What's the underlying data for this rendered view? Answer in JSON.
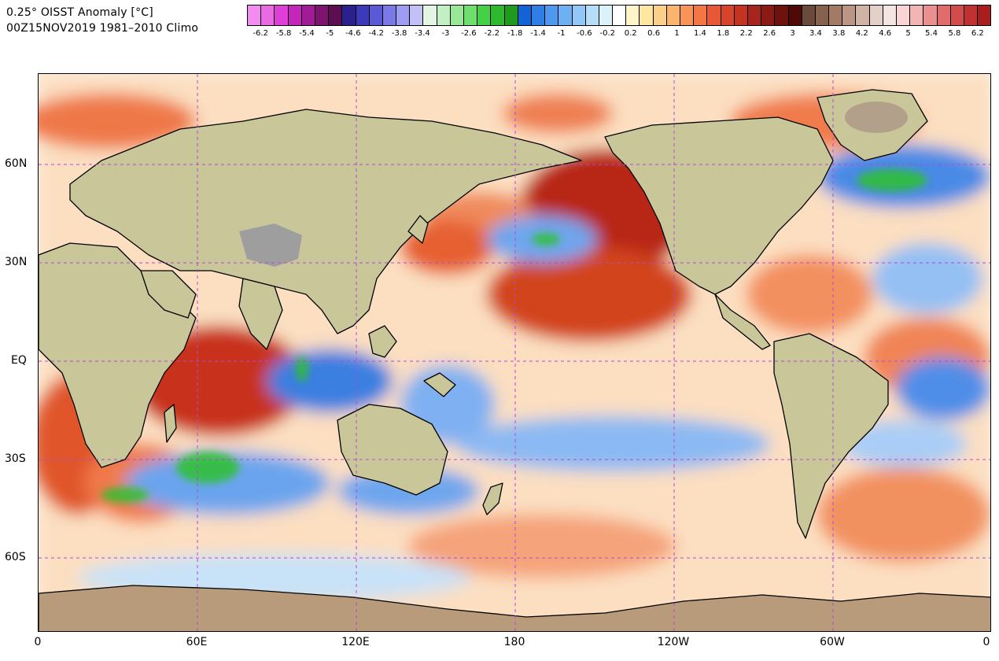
{
  "title": {
    "line1": "0.25° OISST Anomaly [°C]",
    "line2": "00Z15NOV2019 1981–2010 Climo"
  },
  "colorbar": {
    "colors": [
      "#f28cf0",
      "#e86be2",
      "#df3fd6",
      "#c426b9",
      "#a21b96",
      "#7f1370",
      "#5c0f50",
      "#2a218f",
      "#3c3ab8",
      "#5a5ad6",
      "#7b78e8",
      "#9e9cf0",
      "#c2c0f6",
      "#e3f6e3",
      "#c3f0c3",
      "#98e898",
      "#6ede6e",
      "#45d145",
      "#2db82d",
      "#1f9a1f",
      "#1463d6",
      "#2f7ee6",
      "#4f98f0",
      "#6fb0f4",
      "#92c7f8",
      "#b6def9",
      "#dcf2fa",
      "#ffffff",
      "#fff5c8",
      "#ffe7a2",
      "#fdd08a",
      "#fbb46e",
      "#f89556",
      "#f37644",
      "#e85736",
      "#d7432b",
      "#c23322",
      "#a6241b",
      "#8b1a14",
      "#6e120d",
      "#4f0a07",
      "#6a4a3a",
      "#86624e",
      "#a27b66",
      "#bb9684",
      "#d1b3a6",
      "#e4d0c8",
      "#f3e6e2",
      "#f8d4d4",
      "#f3b4b4",
      "#eb9090",
      "#e06c6c",
      "#d24c4c",
      "#c03232",
      "#a81e1e"
    ],
    "tick_labels": [
      "-6.2",
      "-5.8",
      "-5.4",
      "-5",
      "-4.6",
      "-4.2",
      "-3.8",
      "-3.4",
      "-3",
      "-2.6",
      "-2.2",
      "-1.8",
      "-1.4",
      "-1",
      "-0.6",
      "-0.2",
      "0.2",
      "0.6",
      "1",
      "1.4",
      "1.8",
      "2.2",
      "2.6",
      "3",
      "3.4",
      "3.8",
      "4.2",
      "4.6",
      "5",
      "5.4",
      "5.8",
      "6.2"
    ]
  },
  "map": {
    "lat_labels": [
      "60N",
      "30N",
      "EQ",
      "30S",
      "60S"
    ],
    "lon_labels": [
      "0",
      "60E",
      "120E",
      "180",
      "120W",
      "60W",
      "0"
    ],
    "land_color": "#c9c79a",
    "ice_color": "#9e9e9e",
    "grid_color": "#b04ad0",
    "anomaly_colors": {
      "warm": "#e8552a",
      "strong_warm": "#a8200f",
      "cool": "#6ea6ee",
      "strong_cool": "#2f6fd8",
      "green": "#3ccc3c"
    }
  }
}
